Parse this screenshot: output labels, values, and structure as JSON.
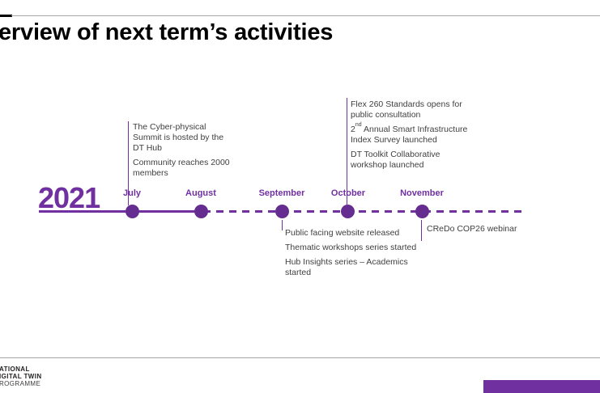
{
  "slide": {
    "title": "erview of next term’s activities",
    "footer_logo_lines": [
      "ATIONAL",
      "IGITAL TWIN",
      "ROGRAMME"
    ]
  },
  "timeline": {
    "year": "2021",
    "months": [
      {
        "label": "July"
      },
      {
        "label": "August"
      },
      {
        "label": "September"
      },
      {
        "label": "October"
      },
      {
        "label": "November"
      }
    ]
  },
  "events": {
    "july": {
      "lines_p1": [
        "The Cyber-physical",
        "Summit is hosted by the",
        "DT Hub"
      ],
      "lines_p2": [
        "Community reaches 2000",
        "members"
      ]
    },
    "october": {
      "lines_p1": [
        "Flex 260 Standards opens for",
        "public consultation"
      ],
      "p2_pre": "2",
      "p2_sup": "nd",
      "p2_rest": " Annual Smart Infrastructure",
      "p2_line2": "Index Survey launched",
      "lines_p3": [
        "DT Toolkit Collaborative",
        "workshop launched"
      ]
    },
    "september": {
      "lines_p1": [
        "Public facing website released"
      ],
      "lines_p2": [
        "Thematic workshops series started"
      ],
      "lines_p3": [
        "Hub Insights series – Academics",
        "started"
      ]
    },
    "november": {
      "lines_p1": [
        "CReDo COP26 webinar"
      ]
    }
  },
  "colors": {
    "accent_purple": "#7030A0",
    "dot_purple": "#662D91",
    "body_text": "#3F3F3F",
    "hairline_gray": "#A6A6A6",
    "title_black": "#000000"
  }
}
